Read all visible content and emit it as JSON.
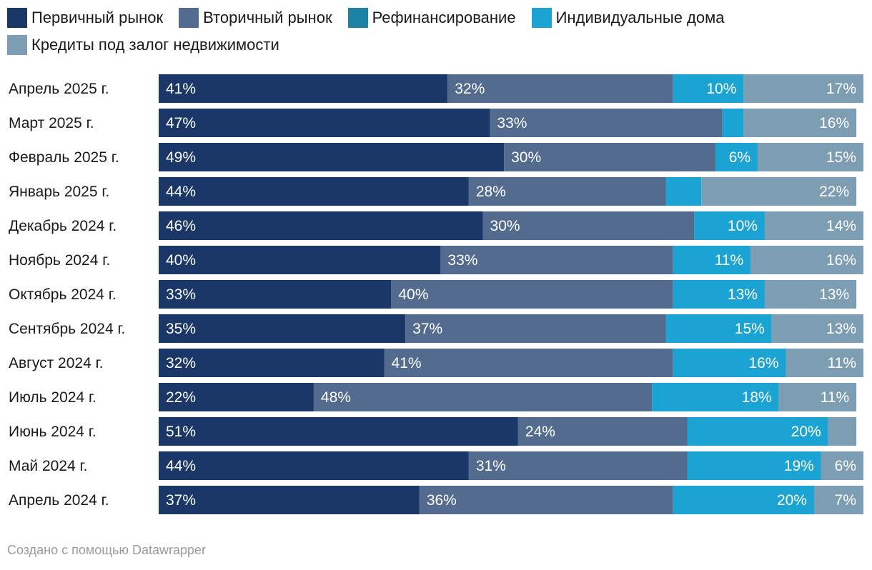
{
  "legend": [
    {
      "label": "Первичный рынок",
      "color": "#1a3768"
    },
    {
      "label": "Вторичный рынок",
      "color": "#536b8f"
    },
    {
      "label": "Рефинансирование",
      "color": "#1e82a6"
    },
    {
      "label": "Индивидуальные дома",
      "color": "#1ba3d4"
    },
    {
      "label": "Кредиты под залог недвижимости",
      "color": "#7c9db2"
    }
  ],
  "chart_data": {
    "type": "bar",
    "orientation": "horizontal",
    "stacked": true,
    "normalized_percent": true,
    "categories": [
      "Апрель 2025 г.",
      "Март 2025 г.",
      "Февраль 2025 г.",
      "Январь 2025 г.",
      "Декабрь 2024 г.",
      "Ноябрь 2024 г.",
      "Октябрь 2024 г.",
      "Сентябрь 2024 г.",
      "Август 2024 г.",
      "Июль 2024 г.",
      "Июнь 2024 г.",
      "Май 2024 г.",
      "Апрель 2024 г."
    ],
    "series": [
      {
        "name": "Первичный рынок",
        "color": "#1a3768",
        "values": [
          41,
          47,
          49,
          44,
          46,
          40,
          33,
          35,
          32,
          22,
          51,
          44,
          37
        ]
      },
      {
        "name": "Вторичный рынок",
        "color": "#536b8f",
        "values": [
          32,
          33,
          30,
          28,
          30,
          33,
          40,
          37,
          41,
          48,
          24,
          31,
          36
        ]
      },
      {
        "name": "Рефинансирование",
        "color": "#1e82a6",
        "values": [
          0,
          0,
          0,
          0,
          0,
          0,
          0,
          0,
          0,
          0,
          0,
          0,
          0
        ]
      },
      {
        "name": "Индивидуальные дома",
        "color": "#1ba3d4",
        "values": [
          10,
          3,
          6,
          5,
          10,
          11,
          13,
          15,
          16,
          18,
          20,
          19,
          20
        ]
      },
      {
        "name": "Кредиты под залог недвижимости",
        "color": "#7c9db2",
        "values": [
          17,
          16,
          15,
          22,
          14,
          16,
          13,
          13,
          11,
          11,
          4,
          6,
          7
        ]
      }
    ],
    "labels": [
      [
        "41%",
        "32%",
        "",
        "10%",
        "17%"
      ],
      [
        "47%",
        "33%",
        "",
        "",
        "16%"
      ],
      [
        "49%",
        "30%",
        "",
        "6%",
        "15%"
      ],
      [
        "44%",
        "28%",
        "",
        "",
        "22%"
      ],
      [
        "46%",
        "30%",
        "",
        "10%",
        "14%"
      ],
      [
        "40%",
        "33%",
        "",
        "11%",
        "16%"
      ],
      [
        "33%",
        "40%",
        "",
        "13%",
        "13%"
      ],
      [
        "35%",
        "37%",
        "",
        "15%",
        "13%"
      ],
      [
        "32%",
        "41%",
        "",
        "16%",
        "11%"
      ],
      [
        "22%",
        "48%",
        "",
        "18%",
        "11%"
      ],
      [
        "51%",
        "24%",
        "",
        "20%",
        ""
      ],
      [
        "44%",
        "31%",
        "",
        "19%",
        "6%"
      ],
      [
        "37%",
        "36%",
        "",
        "20%",
        "7%"
      ]
    ],
    "xlim": [
      0,
      100
    ]
  },
  "footer": "Создано с помощью Datawrapper"
}
